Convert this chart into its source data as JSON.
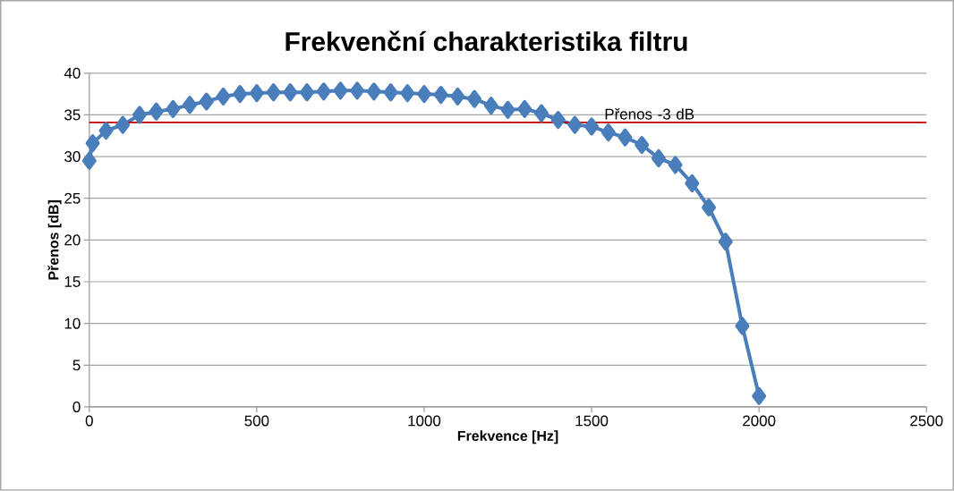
{
  "chart_data": {
    "type": "line",
    "title": "Frekvenční charakteristika filtru",
    "xlabel": "Frekvence [Hz]",
    "ylabel": "Přenos [dB]",
    "xlim": [
      0,
      2500
    ],
    "xticks": [
      0,
      500,
      1000,
      1500,
      2000,
      2500
    ],
    "ylim": [
      0,
      40
    ],
    "yticks": [
      0,
      5,
      10,
      15,
      20,
      25,
      30,
      35,
      40
    ],
    "grid": "y",
    "marker": "diamond",
    "line_style": "solid",
    "x": [
      0,
      10,
      50,
      100,
      150,
      200,
      250,
      300,
      350,
      400,
      450,
      500,
      550,
      600,
      650,
      700,
      750,
      800,
      850,
      900,
      950,
      1000,
      1050,
      1100,
      1150,
      1200,
      1250,
      1300,
      1350,
      1400,
      1450,
      1500,
      1550,
      1600,
      1650,
      1700,
      1750,
      1800,
      1850,
      1900,
      1950,
      2000
    ],
    "series": [
      {
        "color": "#4a7ebb",
        "values": [
          29.5,
          31.6,
          33.1,
          33.8,
          35.0,
          35.4,
          35.7,
          36.2,
          36.6,
          37.2,
          37.5,
          37.6,
          37.7,
          37.7,
          37.7,
          37.8,
          37.9,
          37.9,
          37.8,
          37.7,
          37.6,
          37.5,
          37.4,
          37.2,
          36.9,
          36.1,
          35.6,
          35.7,
          35.2,
          34.4,
          33.8,
          33.6,
          32.9,
          32.3,
          31.4,
          29.8,
          29.0,
          26.8,
          23.9,
          19.8,
          9.7,
          1.3
        ]
      }
    ],
    "ref_lines": [
      {
        "axis": "y",
        "value": 34.1,
        "label": "Přenos -3 dB",
        "color": "#c00000"
      }
    ]
  }
}
